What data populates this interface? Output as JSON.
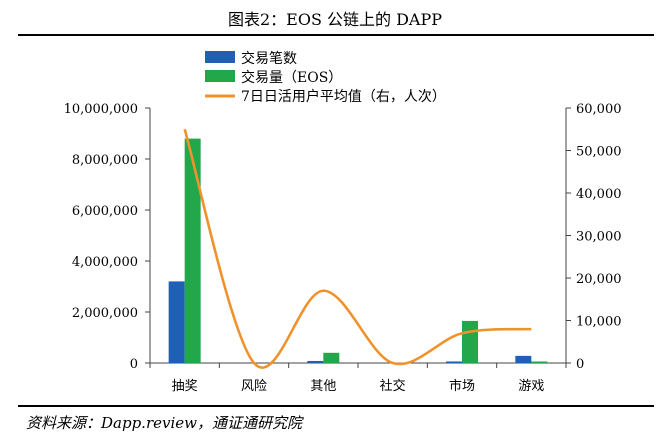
{
  "header": {
    "title": "图表2：EOS 公链上的 DAPP"
  },
  "footer": {
    "source": "资料来源：Dapp.review，通证通研究院"
  },
  "chart_data": {
    "type": "bar",
    "categories": [
      "抽奖",
      "风险",
      "其他",
      "社交",
      "市场",
      "游戏"
    ],
    "series": [
      {
        "name": "交易笔数",
        "type": "bar",
        "axis": "left",
        "color": "#1f5fb4",
        "values": [
          3200000,
          0,
          80000,
          0,
          60000,
          280000
        ]
      },
      {
        "name": "交易量（EOS）",
        "type": "bar",
        "axis": "left",
        "color": "#22a84a",
        "values": [
          8800000,
          0,
          400000,
          0,
          1650000,
          60000
        ]
      },
      {
        "name": "7日日活用户平均值（右，人次）",
        "type": "line",
        "axis": "right",
        "color": "#f0922c",
        "values": [
          55000,
          0,
          17000,
          0,
          7000,
          8000
        ]
      }
    ],
    "y_left": {
      "min": 0,
      "max": 10000000,
      "step": 2000000,
      "ticks": [
        "0",
        "2,000,000",
        "4,000,000",
        "6,000,000",
        "8,000,000",
        "10,000,000"
      ]
    },
    "y_right": {
      "min": 0,
      "max": 60000,
      "step": 10000,
      "ticks": [
        "0",
        "10,000",
        "20,000",
        "30,000",
        "40,000",
        "50,000",
        "60,000"
      ]
    },
    "legend_position": "top-left",
    "grid": false
  }
}
